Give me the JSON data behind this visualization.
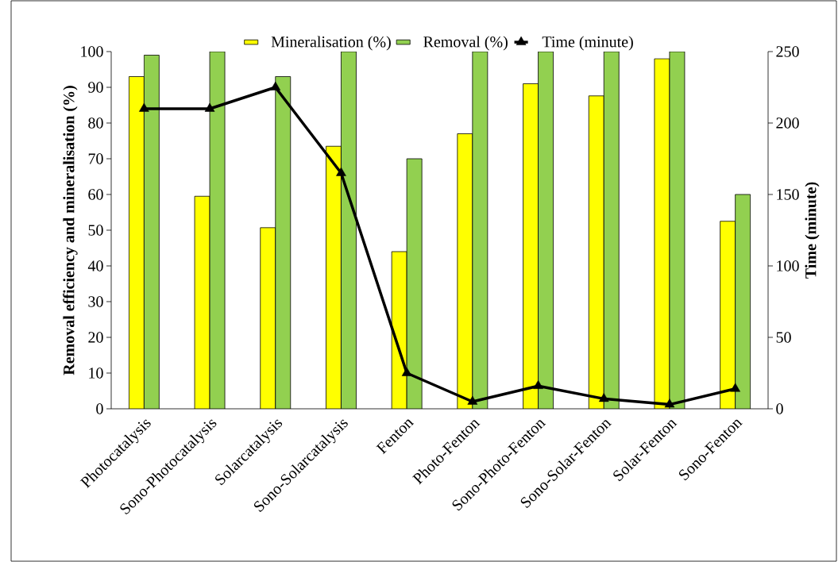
{
  "chart_data": {
    "type": "bar",
    "ylabel": "Removal efficiency and mineralisation (%)",
    "y2label": "Time (minute)",
    "categories": [
      "Photocatalysis",
      "Sono-Photocatalysis",
      "Solarcatalysis",
      "Sono-Solarcatalysis",
      "Fenton",
      "Photo-Fenton",
      "Sono-Photo-Fenton",
      "Sono-Solar-Fenton",
      "Solar-Fenton",
      "Sono-Fenton"
    ],
    "series": [
      {
        "name": "Mineralisation (%)",
        "color": "#ffff00",
        "values": [
          93,
          59.5,
          50.7,
          73.5,
          44,
          77,
          91,
          87.6,
          98,
          52.5
        ]
      },
      {
        "name": "Removal (%)",
        "color": "#92d050",
        "values": [
          99,
          100,
          93,
          100,
          70,
          100,
          100,
          100,
          100,
          60
        ]
      },
      {
        "name": "Time (minute)",
        "type": "line",
        "axis": "y2",
        "color": "#000000",
        "marker": "triangle",
        "line_style": "solid",
        "values": [
          210,
          210,
          225,
          165,
          25,
          5,
          16,
          7,
          3,
          14
        ]
      }
    ],
    "ylim": [
      0,
      100
    ],
    "yticks": [
      0,
      10,
      20,
      30,
      40,
      50,
      60,
      70,
      80,
      90,
      100
    ],
    "y2lim": [
      0,
      250
    ],
    "y2ticks": [
      0,
      50,
      100,
      150,
      200,
      250
    ],
    "legend": "top",
    "grid": false
  }
}
